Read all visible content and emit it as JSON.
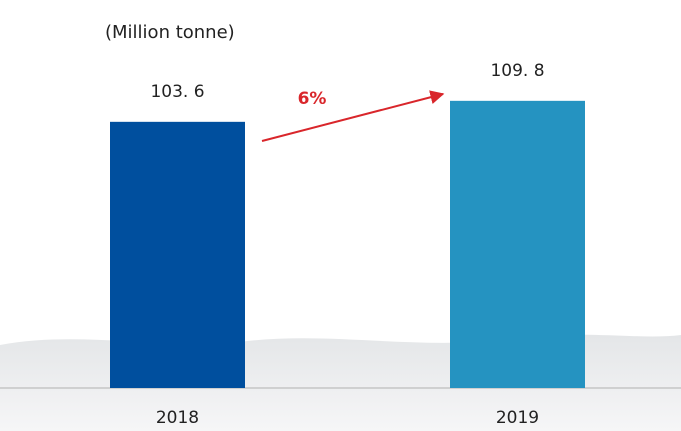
{
  "chart_data": {
    "type": "bar",
    "subtitle": "(Million tonne)",
    "categories": [
      "2018",
      "2019"
    ],
    "values": [
      103.6,
      109.8
    ],
    "value_labels": [
      "103. 6",
      "109. 8"
    ],
    "colors": [
      "#004f9e",
      "#2593c1"
    ],
    "annotation": "6%",
    "ylim": [
      25,
      113
    ]
  }
}
